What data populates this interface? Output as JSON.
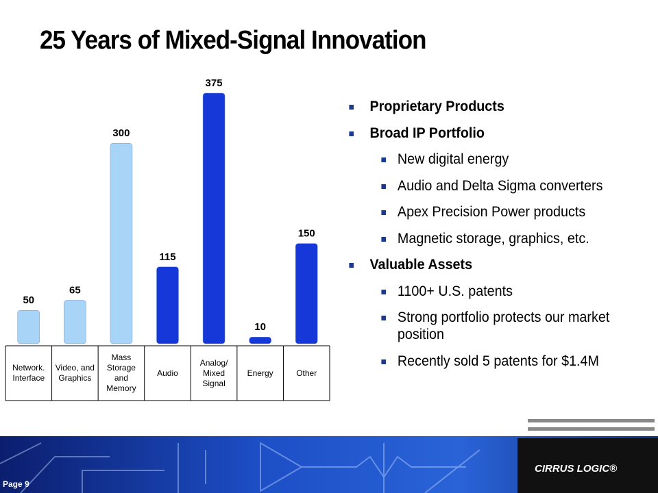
{
  "title": "25 Years of Mixed-Signal Innovation",
  "chart_data": {
    "type": "bar",
    "categories": [
      "Network.\nInterface",
      "Video, and\nGraphics",
      "Mass\nStorage\nand\nMemory",
      "Audio",
      "Analog/\nMixed\nSignal",
      "Energy",
      "Other"
    ],
    "values": [
      50,
      65,
      300,
      115,
      375,
      10,
      150
    ],
    "colors": [
      "#a8d4f7",
      "#a8d4f7",
      "#a8d4f7",
      "#1638d8",
      "#1638d8",
      "#1638d8",
      "#1638d8"
    ]
  },
  "bullets": [
    {
      "level": 0,
      "text": "Proprietary Products"
    },
    {
      "level": 0,
      "text": "Broad IP Portfolio"
    },
    {
      "level": 1,
      "text": "New digital energy"
    },
    {
      "level": 1,
      "text": "Audio and Delta Sigma converters"
    },
    {
      "level": 1,
      "text": "Apex Precision Power products"
    },
    {
      "level": 1,
      "text": "Magnetic storage, graphics, etc."
    },
    {
      "level": 0,
      "text": "Valuable Assets"
    },
    {
      "level": 1,
      "text": "1100+ U.S. patents"
    },
    {
      "level": 1,
      "text": "Strong portfolio protects our market position"
    },
    {
      "level": 1,
      "text": "Recently sold 5 patents for $1.4M"
    }
  ],
  "footer": {
    "page": "Page 9",
    "logo": "CIRRUS LOGIC®"
  }
}
